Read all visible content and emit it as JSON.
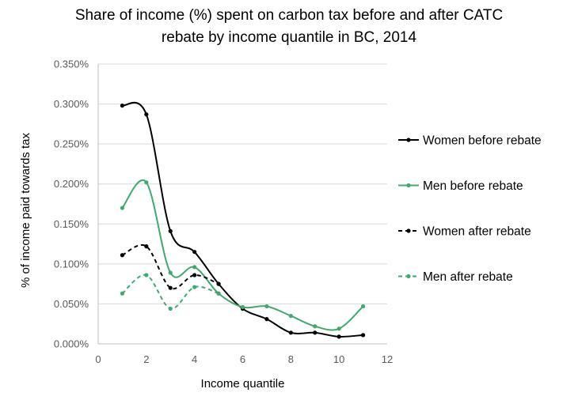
{
  "chart_data": {
    "type": "line",
    "title_lines": [
      "Share of income (%) spent on carbon tax before  and after CATC",
      "rebate by income quantile in BC, 2014"
    ],
    "xlabel": "Income quantile",
    "ylabel": "% of income paid towards tax",
    "xlim": [
      0,
      12
    ],
    "ylim": [
      0,
      0.35
    ],
    "x_ticks": [
      0,
      2,
      4,
      6,
      8,
      10,
      12
    ],
    "y_ticks": [
      "0.000%",
      "0.050%",
      "0.100%",
      "0.150%",
      "0.200%",
      "0.250%",
      "0.300%",
      "0.350%"
    ],
    "y_tick_values": [
      0,
      0.05,
      0.1,
      0.15,
      0.2,
      0.25,
      0.3,
      0.35
    ],
    "grid": "horizontal",
    "legend_position": "right",
    "x": [
      1,
      2,
      3,
      4,
      5,
      6,
      7,
      8,
      9,
      10,
      11
    ],
    "series": [
      {
        "name": "Women before rebate",
        "color": "#000000",
        "dash": "solid",
        "x": [
          1,
          2,
          3,
          4,
          5,
          6,
          7,
          8,
          9,
          10,
          11
        ],
        "values": [
          0.298,
          0.287,
          0.141,
          0.115,
          0.075,
          0.044,
          0.031,
          0.014,
          0.014,
          0.009,
          0.011
        ]
      },
      {
        "name": "Men before rebate",
        "color": "#3daa6e",
        "dash": "solid",
        "x": [
          1,
          2,
          3,
          4,
          5,
          6,
          7,
          8,
          9,
          10,
          11
        ],
        "values": [
          0.17,
          0.202,
          0.089,
          0.096,
          0.063,
          0.046,
          0.047,
          0.035,
          0.022,
          0.019,
          0.047
        ]
      },
      {
        "name": "Women after rebate",
        "color": "#000000",
        "dash": "dashed",
        "x": [
          1,
          2,
          3,
          4,
          5
        ],
        "values": [
          0.111,
          0.122,
          0.07,
          0.086,
          0.075
        ]
      },
      {
        "name": "Men after rebate",
        "color": "#3daa6e",
        "dash": "dashed",
        "x": [
          1,
          2,
          3,
          4,
          5
        ],
        "values": [
          0.063,
          0.086,
          0.044,
          0.071,
          0.063
        ]
      }
    ]
  }
}
